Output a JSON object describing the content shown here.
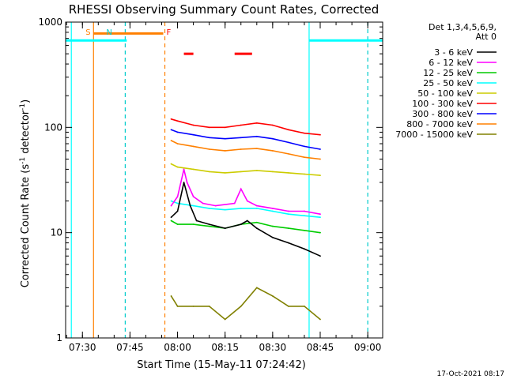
{
  "chart_data": {
    "type": "line",
    "title": "RHESSI Observing Summary Count Rates, Corrected",
    "xlabel": "Start Time (15-May-11 07:24:42)",
    "ylabel_main": "Corrected Count Rate (s",
    "ylabel_sup1": "-1",
    "ylabel_mid": " detector",
    "ylabel_sup2": "-1",
    "ylabel_end": ")",
    "footer": "17-Oct-2021 08:17",
    "y_scale": "log",
    "ylim": [
      1,
      1000
    ],
    "xlim": [
      "07:24:42",
      "09:04:42"
    ],
    "x_ticks": [
      "07:30",
      "07:45",
      "08:00",
      "08:15",
      "08:30",
      "08:45",
      "09:00"
    ],
    "y_ticks": [
      "1",
      "10",
      "100",
      "1000"
    ],
    "legend_position": "right",
    "legend_header": [
      "Det 1,3,4,5,6,9,",
      "Att 0"
    ],
    "series": [
      {
        "name": "3 - 6 keV",
        "color": "#000000",
        "x": [
          "07:58",
          "08:00",
          "08:02",
          "08:04",
          "08:06",
          "08:10",
          "08:15",
          "08:20",
          "08:22",
          "08:25",
          "08:30",
          "08:35",
          "08:40",
          "08:45"
        ],
        "y": [
          14,
          16,
          30,
          18,
          13,
          12,
          11,
          12,
          13,
          11,
          9,
          8,
          7,
          6
        ]
      },
      {
        "name": "6 - 12 keV",
        "color": "#ff00ff",
        "x": [
          "07:58",
          "08:00",
          "08:02",
          "08:03",
          "08:05",
          "08:08",
          "08:12",
          "08:18",
          "08:20",
          "08:22",
          "08:25",
          "08:30",
          "08:35",
          "08:40",
          "08:45"
        ],
        "y": [
          18,
          22,
          40,
          30,
          22,
          19,
          18,
          19,
          26,
          20,
          18,
          17,
          16,
          16,
          15
        ]
      },
      {
        "name": "12 - 25 keV",
        "color": "#00cc00",
        "x": [
          "07:58",
          "08:00",
          "08:05",
          "08:10",
          "08:15",
          "08:20",
          "08:25",
          "08:30",
          "08:35",
          "08:40",
          "08:45"
        ],
        "y": [
          13,
          12,
          12,
          11.5,
          11,
          12,
          12.5,
          11.5,
          11,
          10.5,
          10
        ]
      },
      {
        "name": "25 - 50 keV",
        "color": "#00ffff",
        "x": [
          "07:58",
          "08:00",
          "08:05",
          "08:10",
          "08:15",
          "08:20",
          "08:25",
          "08:30",
          "08:35",
          "08:40",
          "08:45"
        ],
        "y": [
          20,
          19,
          18,
          17,
          16.5,
          17,
          17,
          16,
          15,
          14.5,
          14
        ]
      },
      {
        "name": "50 - 100 keV",
        "color": "#cccc00",
        "x": [
          "07:58",
          "08:00",
          "08:05",
          "08:10",
          "08:15",
          "08:20",
          "08:25",
          "08:30",
          "08:35",
          "08:40",
          "08:45"
        ],
        "y": [
          45,
          42,
          40,
          38,
          37,
          38,
          39,
          38,
          37,
          36,
          35
        ]
      },
      {
        "name": "100 - 300 keV",
        "color": "#ff0000",
        "x": [
          "07:58",
          "08:00",
          "08:05",
          "08:10",
          "08:15",
          "08:20",
          "08:25",
          "08:30",
          "08:35",
          "08:40",
          "08:45"
        ],
        "y": [
          120,
          115,
          105,
          100,
          100,
          105,
          110,
          105,
          95,
          88,
          85
        ]
      },
      {
        "name": "300 - 800 keV",
        "color": "#0000ff",
        "x": [
          "07:58",
          "08:00",
          "08:05",
          "08:10",
          "08:15",
          "08:20",
          "08:25",
          "08:30",
          "08:35",
          "08:40",
          "08:45"
        ],
        "y": [
          95,
          90,
          85,
          80,
          78,
          80,
          82,
          78,
          72,
          66,
          62
        ]
      },
      {
        "name": "800 - 7000 keV",
        "color": "#ff8000",
        "x": [
          "07:58",
          "08:00",
          "08:05",
          "08:10",
          "08:15",
          "08:20",
          "08:25",
          "08:30",
          "08:35",
          "08:40",
          "08:45"
        ],
        "y": [
          75,
          70,
          66,
          62,
          60,
          62,
          63,
          60,
          56,
          52,
          50
        ]
      },
      {
        "name": "7000 - 15000 keV",
        "color": "#808000",
        "x": [
          "07:58",
          "08:00",
          "08:05",
          "08:10",
          "08:15",
          "08:20",
          "08:25",
          "08:30",
          "08:35",
          "08:40",
          "08:45"
        ],
        "y": [
          2.5,
          2,
          2,
          2,
          1.5,
          2,
          3,
          2.5,
          2,
          2,
          1.5
        ]
      }
    ],
    "annotations": [
      {
        "label": "S",
        "time": "07:33:30",
        "color": "#ff8000"
      },
      {
        "label": "N",
        "time": "07:40:00",
        "color": "#00cccc"
      },
      {
        "label": "F",
        "time": "07:59:00",
        "color": "#ff0000"
      }
    ],
    "bars": [
      {
        "color": "#00ffff",
        "y": 670,
        "from": "07:24:42",
        "to": "07:44:00"
      },
      {
        "color": "#ff8000",
        "y": 780,
        "from": "07:33:30",
        "to": "07:55:30"
      },
      {
        "color": "#ff0000",
        "y": 500,
        "from": "08:02:00",
        "to": "08:05:00"
      },
      {
        "color": "#ff0000",
        "y": 500,
        "from": "08:18:00",
        "to": "08:23:30"
      },
      {
        "color": "#00ffff",
        "y": 670,
        "from": "08:41:30",
        "to": "09:04:42"
      }
    ],
    "vlines": [
      {
        "time": "07:26:30",
        "color": "#00ffff",
        "dashed": false
      },
      {
        "time": "07:33:30",
        "color": "#ff8000",
        "dashed": false
      },
      {
        "time": "07:43:30",
        "color": "#00cccc",
        "dashed": true
      },
      {
        "time": "07:56:00",
        "color": "#ff8000",
        "dashed": true
      },
      {
        "time": "08:41:30",
        "color": "#00ffff",
        "dashed": false
      },
      {
        "time": "09:00:00",
        "color": "#00cccc",
        "dashed": true
      }
    ]
  }
}
